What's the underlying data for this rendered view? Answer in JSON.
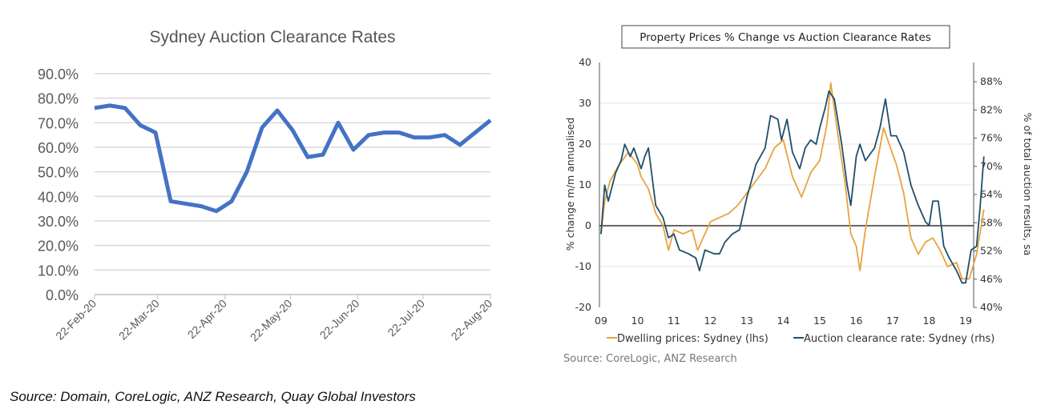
{
  "source_note": "Source: Domain, CoreLogic, ANZ Research, Quay Global Investors",
  "chart_data": [
    {
      "type": "line",
      "title": "Sydney Auction Clearance Rates",
      "ylim": [
        0,
        90
      ],
      "yticks": [
        "0.0%",
        "10.0%",
        "20.0%",
        "30.0%",
        "40.0%",
        "50.0%",
        "60.0%",
        "70.0%",
        "80.0%",
        "90.0%"
      ],
      "xticks": [
        "22-Feb-20",
        "22-Mar-20",
        "22-Apr-20",
        "22-May-20",
        "22-Jun-20",
        "22-Jul-20",
        "22-Aug-20"
      ],
      "grid": true,
      "color": "#4472C4",
      "x": [
        "2020-02-22",
        "2020-02-29",
        "2020-03-07",
        "2020-03-14",
        "2020-03-21",
        "2020-03-28",
        "2020-04-04",
        "2020-04-11",
        "2020-04-18",
        "2020-04-25",
        "2020-05-02",
        "2020-05-09",
        "2020-05-16",
        "2020-05-23",
        "2020-05-30",
        "2020-06-06",
        "2020-06-13",
        "2020-06-20",
        "2020-06-27",
        "2020-07-04",
        "2020-07-11",
        "2020-07-18",
        "2020-07-25",
        "2020-08-01",
        "2020-08-08",
        "2020-08-15",
        "2020-08-22"
      ],
      "values": [
        76,
        77,
        76,
        69,
        66,
        38,
        37,
        36,
        34,
        38,
        50,
        68,
        75,
        67,
        56,
        57,
        70,
        59,
        65,
        66,
        66,
        64,
        64,
        65,
        61,
        66,
        71
      ]
    },
    {
      "type": "line",
      "title": "Property Prices % Change vs Auction Clearance Rates",
      "ylabel": "% change m/m annualised",
      "y2label": "% of total auction results, sa",
      "ylim": [
        -20,
        40
      ],
      "y2lim": [
        40,
        92.1
      ],
      "yticks": [
        "40",
        "30",
        "20",
        "10",
        "0",
        "-10",
        "-20"
      ],
      "y2ticks": [
        "88%",
        "82%",
        "76%",
        "70%",
        "64%",
        "58%",
        "52%",
        "46%",
        "40%"
      ],
      "xticks": [
        "09",
        "10",
        "11",
        "12",
        "13",
        "14",
        "15",
        "16",
        "17",
        "18",
        "19"
      ],
      "legend": "bottom",
      "source": "Source: CoreLogic, ANZ Research",
      "series": [
        {
          "name": "Dwelling prices: Sydney (lhs)",
          "color": "#E8A33D",
          "axis": "left",
          "x": [
            2009.0,
            2009.1,
            2009.25,
            2009.5,
            2009.75,
            2010.0,
            2010.1,
            2010.3,
            2010.5,
            2010.7,
            2010.85,
            2011.0,
            2011.25,
            2011.5,
            2011.65,
            2011.8,
            2012.0,
            2012.25,
            2012.5,
            2012.75,
            2013.0,
            2013.25,
            2013.5,
            2013.75,
            2014.0,
            2014.25,
            2014.5,
            2014.75,
            2015.0,
            2015.2,
            2015.3,
            2015.5,
            2015.7,
            2015.85,
            2016.0,
            2016.1,
            2016.25,
            2016.5,
            2016.75,
            2016.9,
            2017.1,
            2017.3,
            2017.5,
            2017.7,
            2017.9,
            2018.1,
            2018.3,
            2018.5,
            2018.75,
            2018.9,
            2019.1,
            2019.3,
            2019.5
          ],
          "values": [
            -2,
            6,
            11,
            15,
            18,
            15,
            12,
            9,
            3,
            0,
            -6,
            -1,
            -2,
            -1,
            -6,
            -3,
            1,
            2,
            3,
            5,
            8,
            11,
            14,
            19,
            21,
            12,
            7,
            13,
            16,
            25,
            35,
            22,
            10,
            -2,
            -5,
            -11,
            -1,
            12,
            24,
            20,
            15,
            8,
            -3,
            -7,
            -4,
            -3,
            -6,
            -10,
            -9,
            -13,
            -13,
            -7,
            4
          ]
        },
        {
          "name": "Auction clearance rate: Sydney (rhs)",
          "color": "#1F4E6B",
          "axis": "right",
          "x": [
            2009.0,
            2009.1,
            2009.2,
            2009.4,
            2009.55,
            2009.65,
            2009.8,
            2009.9,
            2010.1,
            2010.2,
            2010.3,
            2010.5,
            2010.7,
            2010.85,
            2011.0,
            2011.15,
            2011.4,
            2011.6,
            2011.7,
            2011.85,
            2012.1,
            2012.25,
            2012.4,
            2012.6,
            2012.8,
            2013.0,
            2013.25,
            2013.5,
            2013.65,
            2013.85,
            2013.95,
            2014.1,
            2014.25,
            2014.45,
            2014.6,
            2014.75,
            2014.9,
            2015.0,
            2015.15,
            2015.25,
            2015.4,
            2015.6,
            2015.75,
            2015.85,
            2016.0,
            2016.1,
            2016.25,
            2016.5,
            2016.65,
            2016.8,
            2016.95,
            2017.1,
            2017.3,
            2017.5,
            2017.7,
            2017.9,
            2018.0,
            2018.1,
            2018.25,
            2018.4,
            2018.55,
            2018.75,
            2018.9,
            2019.0,
            2019.15,
            2019.3,
            2019.4,
            2019.5
          ],
          "values": [
            55.6,
            66.0,
            62.6,
            68.6,
            71.2,
            74.7,
            72.1,
            73.9,
            69.5,
            72.1,
            73.9,
            61.7,
            59.1,
            54.8,
            55.6,
            52.2,
            51.4,
            50.5,
            47.8,
            52.2,
            51.4,
            51.4,
            53.9,
            55.6,
            56.5,
            63.4,
            70.4,
            73.9,
            80.8,
            80.0,
            75.6,
            80.0,
            73.0,
            69.5,
            73.9,
            75.6,
            74.7,
            78.2,
            82.5,
            86.0,
            84.3,
            74.7,
            66.0,
            61.7,
            72.1,
            74.7,
            71.2,
            73.9,
            78.2,
            84.3,
            76.5,
            76.5,
            73.0,
            66.0,
            61.7,
            58.2,
            57.4,
            62.6,
            62.6,
            53.0,
            50.5,
            47.8,
            45.2,
            45.2,
            52.2,
            53.0,
            61.7,
            72.1
          ]
        }
      ]
    }
  ]
}
